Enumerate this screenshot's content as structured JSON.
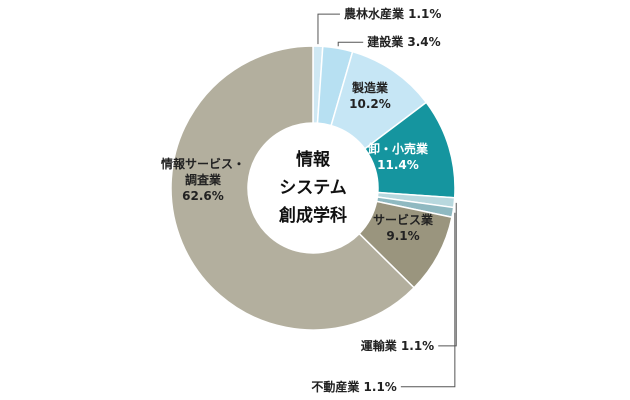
{
  "chart_data": {
    "type": "pie",
    "variant": "donut",
    "center_label": [
      "情報",
      "システム",
      "創成学科"
    ],
    "series": [
      {
        "name": "農林水産業",
        "value": 1.1,
        "color": "#cfe8f3",
        "label": "農林水産業 1.1%"
      },
      {
        "name": "建設業",
        "value": 3.4,
        "color": "#b7e0f2",
        "label": "建設業 3.4%"
      },
      {
        "name": "製造業",
        "value": 10.2,
        "color": "#c6e6f5",
        "label_lines": [
          "製造業",
          "10.2%"
        ]
      },
      {
        "name": "卸・小売業",
        "value": 11.4,
        "color": "#15959f",
        "label_lines": [
          "卸・小売業",
          "11.4%"
        ]
      },
      {
        "name": "運輸業",
        "value": 1.1,
        "color": "#b8d8de",
        "label": "運輸業 1.1%"
      },
      {
        "name": "不動産業",
        "value": 1.1,
        "color": "#8fb9c1",
        "label": "不動産業 1.1%"
      },
      {
        "name": "サービス業",
        "value": 9.1,
        "color": "#9a957e",
        "label_lines": [
          "サービス業",
          "9.1%"
        ]
      },
      {
        "name": "情報サービス・調査業",
        "value": 62.6,
        "color": "#b3af9e",
        "label_lines": [
          "情報サービス・",
          "調査業",
          "62.6%"
        ]
      }
    ],
    "legend": "none"
  }
}
